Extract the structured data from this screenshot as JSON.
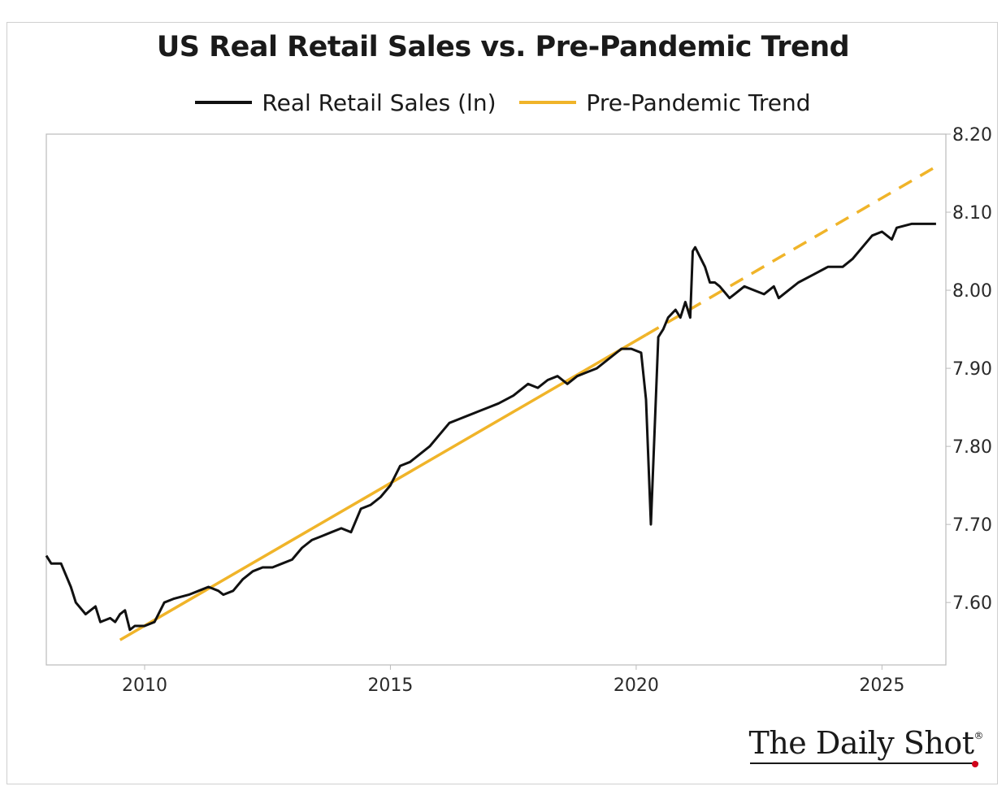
{
  "colors": {
    "sales": "#111111",
    "trend": "#F0B429",
    "frame": "#cfcfcf",
    "axis": "#bbbbbb"
  },
  "logo": {
    "text": "The Daily Shot",
    "mark": "®"
  },
  "chart_data": {
    "type": "line",
    "title": "US Real Retail Sales vs. Pre-Pandemic Trend",
    "xlabel": "",
    "ylabel": "",
    "xlim": [
      2008.0,
      2026.3
    ],
    "ylim": [
      7.52,
      8.2
    ],
    "x_ticks": [
      2010,
      2015,
      2020,
      2025
    ],
    "y_ticks": [
      7.6,
      7.7,
      7.8,
      7.9,
      8.0,
      8.1,
      8.2
    ],
    "y_tick_labels": [
      "7.60",
      "7.70",
      "7.80",
      "7.90",
      "8.00",
      "8.10",
      "8.20"
    ],
    "y_axis_side": "right",
    "legend_position": "top-center",
    "grid": false,
    "series": [
      {
        "name": "Real Retail Sales (ln)",
        "style": "solid",
        "x": [
          2008.0,
          2008.1,
          2008.3,
          2008.5,
          2008.6,
          2008.8,
          2008.9,
          2009.0,
          2009.1,
          2009.3,
          2009.4,
          2009.5,
          2009.6,
          2009.7,
          2009.8,
          2010.0,
          2010.2,
          2010.4,
          2010.6,
          2010.9,
          2011.1,
          2011.3,
          2011.5,
          2011.6,
          2011.8,
          2012.0,
          2012.2,
          2012.4,
          2012.6,
          2012.8,
          2013.0,
          2013.2,
          2013.4,
          2013.6,
          2013.8,
          2014.0,
          2014.2,
          2014.4,
          2014.6,
          2014.8,
          2015.0,
          2015.2,
          2015.4,
          2015.6,
          2015.8,
          2016.0,
          2016.2,
          2016.4,
          2016.6,
          2016.8,
          2017.0,
          2017.2,
          2017.5,
          2017.8,
          2018.0,
          2018.2,
          2018.4,
          2018.6,
          2018.8,
          2019.0,
          2019.2,
          2019.4,
          2019.7,
          2019.9,
          2020.1,
          2020.2,
          2020.3,
          2020.45,
          2020.55,
          2020.65,
          2020.8,
          2020.9,
          2021.0,
          2021.1,
          2021.15,
          2021.2,
          2021.4,
          2021.5,
          2021.6,
          2021.7,
          2021.9,
          2022.0,
          2022.2,
          2022.4,
          2022.6,
          2022.8,
          2022.9,
          2023.1,
          2023.3,
          2023.6,
          2023.9,
          2024.2,
          2024.4,
          2024.6,
          2024.8,
          2025.0,
          2025.2,
          2025.3,
          2025.6,
          2025.9,
          2026.1
        ],
        "values": [
          7.66,
          7.65,
          7.65,
          7.62,
          7.6,
          7.585,
          7.59,
          7.595,
          7.575,
          7.58,
          7.575,
          7.585,
          7.59,
          7.565,
          7.57,
          7.57,
          7.575,
          7.6,
          7.605,
          7.61,
          7.615,
          7.62,
          7.615,
          7.61,
          7.615,
          7.63,
          7.64,
          7.645,
          7.645,
          7.65,
          7.655,
          7.67,
          7.68,
          7.685,
          7.69,
          7.695,
          7.69,
          7.72,
          7.725,
          7.735,
          7.75,
          7.775,
          7.78,
          7.79,
          7.8,
          7.815,
          7.83,
          7.835,
          7.84,
          7.845,
          7.85,
          7.855,
          7.865,
          7.88,
          7.875,
          7.885,
          7.89,
          7.88,
          7.89,
          7.895,
          7.9,
          7.91,
          7.925,
          7.925,
          7.92,
          7.86,
          7.7,
          7.94,
          7.95,
          7.965,
          7.975,
          7.965,
          7.985,
          7.965,
          8.05,
          8.055,
          8.03,
          8.01,
          8.01,
          8.005,
          7.99,
          7.995,
          8.005,
          8.0,
          7.995,
          8.005,
          7.99,
          8.0,
          8.01,
          8.02,
          8.03,
          8.03,
          8.04,
          8.055,
          8.07,
          8.075,
          8.065,
          8.08,
          8.085,
          8.085,
          8.085
        ]
      },
      {
        "name": "Pre-Pandemic Trend",
        "style": "solid-then-dashed",
        "dash_from_x": 2020.2,
        "x": [
          2009.5,
          2026.2
        ],
        "values": [
          7.552,
          8.162
        ]
      }
    ]
  }
}
